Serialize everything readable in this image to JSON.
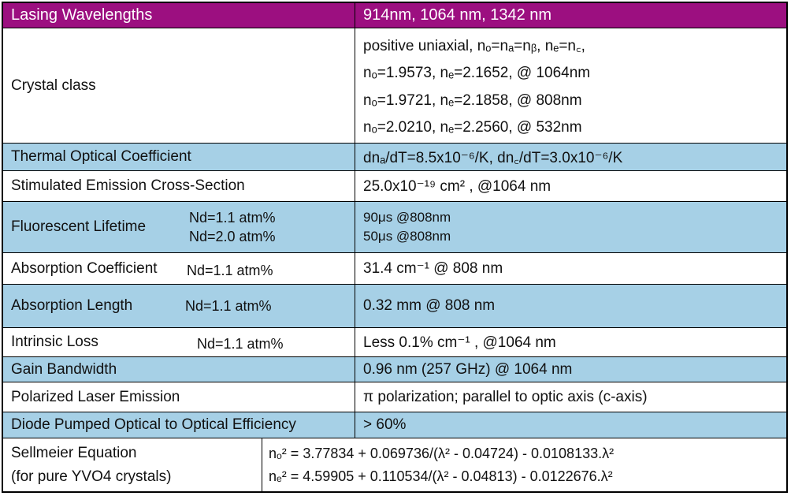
{
  "header": {
    "label": "Lasing Wavelengths",
    "value": "914nm, 1064 nm, 1342 nm"
  },
  "crystal_class": {
    "label": "Crystal class",
    "lines": [
      "positive uniaxial, nₒ=nₐ=nᵦ, nₑ=n꜀,",
      "nₒ=1.9573, nₑ=2.1652, @ 1064nm",
      "nₒ=1.9721, nₑ=2.1858, @ 808nm",
      "nₒ=2.0210, nₑ=2.2560, @ 532nm"
    ]
  },
  "thermal": {
    "label": "Thermal Optical Coefficient",
    "value": "dnₐ/dT=8.5x10⁻⁶/K, dn꜀/dT=3.0x10⁻⁶/K"
  },
  "stimulated": {
    "label": "Stimulated Emission Cross-Section",
    "value": "25.0x10⁻¹⁹ cm² , @1064 nm"
  },
  "fluorescent": {
    "label": "Fluorescent Lifetime",
    "sub1": "Nd=1.1 atm%",
    "sub2": "Nd=2.0 atm%",
    "value1": "90μs @808nm",
    "value2": "50μs @808nm"
  },
  "absorption_coeff": {
    "label": "Absorption Coefficient",
    "sub": "Nd=1.1 atm%",
    "value": "31.4 cm⁻¹ @ 808 nm"
  },
  "absorption_len": {
    "label": "Absorption Length",
    "sub": "Nd=1.1 atm%",
    "value": "0.32 mm  @ 808 nm"
  },
  "intrinsic": {
    "label": "Intrinsic Loss",
    "sub": "Nd=1.1 atm%",
    "value": "Less 0.1% cm⁻¹ , @1064 nm"
  },
  "gain": {
    "label": "Gain Bandwidth",
    "value": "0.96 nm (257 GHz) @ 1064 nm"
  },
  "polarized": {
    "label": "Polarized Laser Emission",
    "value": "π polarization; parallel to optic axis (c-axis)"
  },
  "diode": {
    "label": "Diode Pumped Optical to Optical Efficiency",
    "value": "> 60%"
  },
  "sellmeier": {
    "label1": "Sellmeier Equation",
    "label2": "(for pure YVO4 crystals)",
    "eq1": "nₒ² = 3.77834 + 0.069736/(λ² - 0.04724) - 0.0108133.λ²",
    "eq2": "nₑ² = 4.59905 + 0.110534/(λ² - 0.04813) - 0.0122676.λ²"
  },
  "colors": {
    "header": "#9c0f80",
    "blue_row": "#a6d0e6",
    "white_row": "#ffffff",
    "border": "#000000"
  }
}
